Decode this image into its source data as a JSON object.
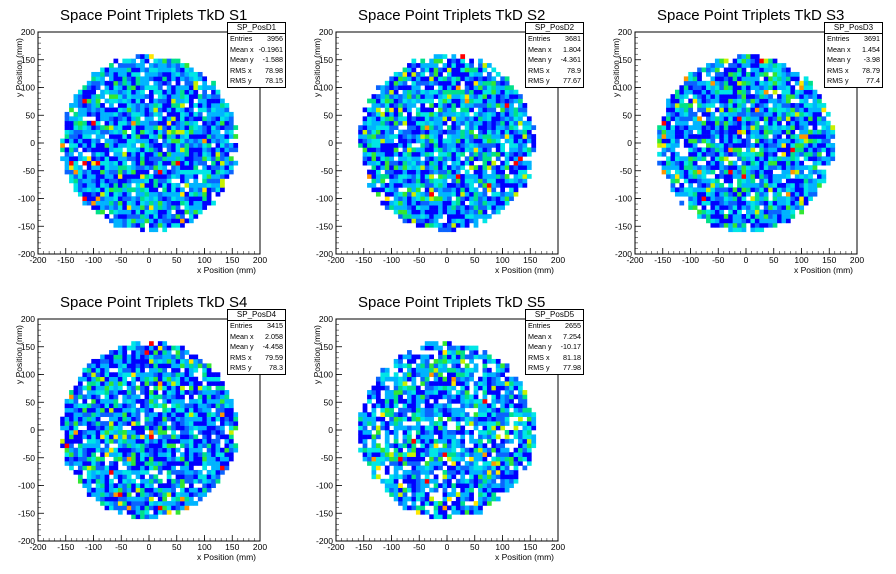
{
  "colors": {
    "palette": [
      "#0000ff",
      "#0a64ff",
      "#00b4ff",
      "#00e6e6",
      "#00e08a",
      "#32e632",
      "#c8f000",
      "#ffe600",
      "#ff9600",
      "#ff0000"
    ]
  },
  "chart_data": [
    {
      "type": "heatmap",
      "title": "Space Point Triplets TkD S1",
      "xlabel": "x Position (mm)",
      "ylabel": "y Position (mm)",
      "xlim": [
        -200,
        200
      ],
      "ylim": [
        -200,
        200
      ],
      "xticks": [
        -200,
        -150,
        -100,
        -50,
        0,
        50,
        100,
        150,
        200
      ],
      "yticks": [
        -200,
        -150,
        -100,
        -50,
        0,
        50,
        100,
        150,
        200
      ],
      "fill_radius_mm": 155,
      "description_values": "2D histogram, uniform circular disk of hits",
      "stats": {
        "name": "SP_PosD1",
        "rows": [
          [
            "Entries",
            "3956"
          ],
          [
            "Mean x",
            "-0.1961"
          ],
          [
            "Mean y",
            "-1.588"
          ],
          [
            "RMS x",
            "78.98"
          ],
          [
            "RMS y",
            "78.15"
          ]
        ]
      }
    },
    {
      "type": "heatmap",
      "title": "Space Point Triplets TkD S2",
      "xlabel": "x Position (mm)",
      "ylabel": "y Position (mm)",
      "xlim": [
        -200,
        200
      ],
      "ylim": [
        -200,
        200
      ],
      "xticks": [
        -200,
        -150,
        -100,
        -50,
        0,
        50,
        100,
        150,
        200
      ],
      "yticks": [
        -200,
        -150,
        -100,
        -50,
        0,
        50,
        100,
        150,
        200
      ],
      "fill_radius_mm": 155,
      "stats": {
        "name": "SP_PosD2",
        "rows": [
          [
            "Entries",
            "3681"
          ],
          [
            "Mean x",
            "1.804"
          ],
          [
            "Mean y",
            "-4.361"
          ],
          [
            "RMS x",
            "78.9"
          ],
          [
            "RMS y",
            "77.67"
          ]
        ]
      }
    },
    {
      "type": "heatmap",
      "title": "Space Point Triplets TkD S3",
      "xlabel": "x Position (mm)",
      "ylabel": "y Position (mm)",
      "xlim": [
        -200,
        200
      ],
      "ylim": [
        -200,
        200
      ],
      "xticks": [
        -200,
        -150,
        -100,
        -50,
        0,
        50,
        100,
        150,
        200
      ],
      "yticks": [
        -200,
        -150,
        -100,
        -50,
        0,
        50,
        100,
        150,
        200
      ],
      "fill_radius_mm": 155,
      "stats": {
        "name": "SP_PosD3",
        "rows": [
          [
            "Entries",
            "3691"
          ],
          [
            "Mean x",
            "1.454"
          ],
          [
            "Mean y",
            "-3.98"
          ],
          [
            "RMS x",
            "78.79"
          ],
          [
            "RMS y",
            "77.4"
          ]
        ]
      }
    },
    {
      "type": "heatmap",
      "title": "Space Point Triplets TkD S4",
      "xlabel": "x Position (mm)",
      "ylabel": "y Position (mm)",
      "xlim": [
        -200,
        200
      ],
      "ylim": [
        -200,
        200
      ],
      "xticks": [
        -200,
        -150,
        -100,
        -50,
        0,
        50,
        100,
        150,
        200
      ],
      "yticks": [
        -200,
        -150,
        -100,
        -50,
        0,
        50,
        100,
        150,
        200
      ],
      "fill_radius_mm": 155,
      "stats": {
        "name": "SP_PosD4",
        "rows": [
          [
            "Entries",
            "3415"
          ],
          [
            "Mean x",
            "2.058"
          ],
          [
            "Mean y",
            "-4.458"
          ],
          [
            "RMS x",
            "79.59"
          ],
          [
            "RMS y",
            "78.3"
          ]
        ]
      }
    },
    {
      "type": "heatmap",
      "title": "Space Point Triplets TkD S5",
      "xlabel": "x Position (mm)",
      "ylabel": "y Position (mm)",
      "xlim": [
        -200,
        200
      ],
      "ylim": [
        -200,
        200
      ],
      "xticks": [
        -200,
        -150,
        -100,
        -50,
        0,
        50,
        100,
        150,
        200
      ],
      "yticks": [
        -200,
        -150,
        -100,
        -50,
        0,
        50,
        100,
        150,
        200
      ],
      "fill_radius_mm": 155,
      "stats": {
        "name": "SP_PosD5",
        "rows": [
          [
            "Entries",
            "2655"
          ],
          [
            "Mean x",
            "7.254"
          ],
          [
            "Mean y",
            "-10.17"
          ],
          [
            "RMS x",
            "81.18"
          ],
          [
            "RMS y",
            "77.98"
          ]
        ]
      }
    }
  ]
}
